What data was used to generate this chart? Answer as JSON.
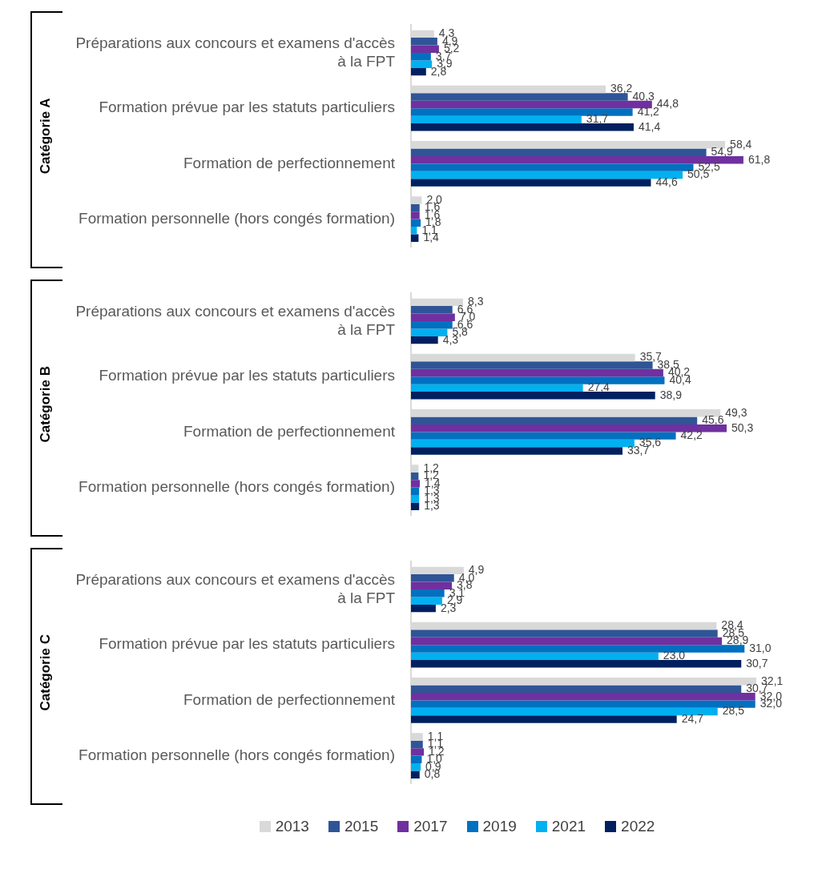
{
  "chart_data": [
    {
      "type": "bar",
      "orientation": "horizontal",
      "ylabel": "Catégorie A",
      "categories": [
        "Préparations aux concours et examens d'accès à la FPT",
        "Formation prévue par les statuts particuliers",
        "Formation de perfectionnement",
        "Formation personnelle (hors congés formation)"
      ],
      "tick_labels": "y",
      "legend": "bottom",
      "series": [
        {
          "name": "2013",
          "color": "#d9d9d9",
          "values": [
            4.3,
            36.2,
            58.4,
            2.0
          ],
          "value_labels": [
            "4,3",
            "36,2",
            "58,4",
            "2,0"
          ]
        },
        {
          "name": "2015",
          "color": "#2f5597",
          "values": [
            4.9,
            40.3,
            54.9,
            1.6
          ],
          "value_labels": [
            "4,9",
            "40,3",
            "54,9",
            "1,6"
          ]
        },
        {
          "name": "2017",
          "color": "#7030a0",
          "values": [
            5.2,
            44.8,
            61.8,
            1.6
          ],
          "value_labels": [
            "5,2",
            "44,8",
            "61,8",
            "1,6"
          ]
        },
        {
          "name": "2019",
          "color": "#0070c0",
          "values": [
            3.7,
            41.2,
            52.5,
            1.8
          ],
          "value_labels": [
            "3,7",
            "41,2",
            "52,5",
            "1,8"
          ]
        },
        {
          "name": "2021",
          "color": "#00b0f0",
          "values": [
            3.9,
            31.7,
            50.5,
            1.1
          ],
          "value_labels": [
            "3,9",
            "31,7",
            "50,5",
            "1,1"
          ]
        },
        {
          "name": "2022",
          "color": "#002060",
          "values": [
            2.8,
            41.4,
            44.6,
            1.4
          ],
          "value_labels": [
            "2,8",
            "41,4",
            "44,6",
            "1,4"
          ]
        }
      ]
    },
    {
      "type": "bar",
      "orientation": "horizontal",
      "ylabel": "Catégorie B",
      "categories": [
        "Préparations aux concours et examens d'accès à la FPT",
        "Formation prévue par les statuts particuliers",
        "Formation de perfectionnement",
        "Formation personnelle (hors congés formation)"
      ],
      "tick_labels": "y",
      "series": [
        {
          "name": "2013",
          "color": "#d9d9d9",
          "values": [
            8.3,
            35.7,
            49.3,
            1.2
          ],
          "value_labels": [
            "8,3",
            "35,7",
            "49,3",
            "1,2"
          ]
        },
        {
          "name": "2015",
          "color": "#2f5597",
          "values": [
            6.6,
            38.5,
            45.6,
            1.2
          ],
          "value_labels": [
            "6,6",
            "38,5",
            "45,6",
            "1,2"
          ]
        },
        {
          "name": "2017",
          "color": "#7030a0",
          "values": [
            7.0,
            40.2,
            50.3,
            1.4
          ],
          "value_labels": [
            "7,0",
            "40,2",
            "50,3",
            "1,4"
          ]
        },
        {
          "name": "2019",
          "color": "#0070c0",
          "values": [
            6.6,
            40.4,
            42.2,
            1.3
          ],
          "value_labels": [
            "6,6",
            "40,4",
            "42,2",
            "1,3"
          ]
        },
        {
          "name": "2021",
          "color": "#00b0f0",
          "values": [
            5.8,
            27.4,
            35.6,
            1.3
          ],
          "value_labels": [
            "5,8",
            "27,4",
            "35,6",
            "1,3"
          ]
        },
        {
          "name": "2022",
          "color": "#002060",
          "values": [
            4.3,
            38.9,
            33.7,
            1.3
          ],
          "value_labels": [
            "4,3",
            "38,9",
            "33,7",
            "1,3"
          ]
        }
      ]
    },
    {
      "type": "bar",
      "orientation": "horizontal",
      "ylabel": "Catégorie C",
      "categories": [
        "Préparations aux concours et examens d'accès à la FPT",
        "Formation prévue par les statuts particuliers",
        "Formation de perfectionnement",
        "Formation personnelle (hors congés formation)"
      ],
      "tick_labels": "y",
      "series": [
        {
          "name": "2013",
          "color": "#d9d9d9",
          "values": [
            4.9,
            28.4,
            32.1,
            1.1
          ],
          "value_labels": [
            "4,9",
            "28,4",
            "32,1",
            "1,1"
          ]
        },
        {
          "name": "2015",
          "color": "#2f5597",
          "values": [
            4.0,
            28.5,
            30.7,
            1.1
          ],
          "value_labels": [
            "4,0",
            "28,5",
            "30,7",
            "1,1"
          ]
        },
        {
          "name": "2017",
          "color": "#7030a0",
          "values": [
            3.8,
            28.9,
            32.0,
            1.2
          ],
          "value_labels": [
            "3,8",
            "28,9",
            "32,0",
            "1,2"
          ]
        },
        {
          "name": "2019",
          "color": "#0070c0",
          "values": [
            3.1,
            31.0,
            32.0,
            1.0
          ],
          "value_labels": [
            "3,1",
            "31,0",
            "32,0",
            "1,0"
          ]
        },
        {
          "name": "2021",
          "color": "#00b0f0",
          "values": [
            2.9,
            23.0,
            28.5,
            0.9
          ],
          "value_labels": [
            "2,9",
            "23,0",
            "28,5",
            "0,9"
          ]
        },
        {
          "name": "2022",
          "color": "#002060",
          "values": [
            2.3,
            30.7,
            24.7,
            0.8
          ],
          "value_labels": [
            "2,3",
            "30,7",
            "24,7",
            "0,8"
          ]
        }
      ]
    }
  ]
}
